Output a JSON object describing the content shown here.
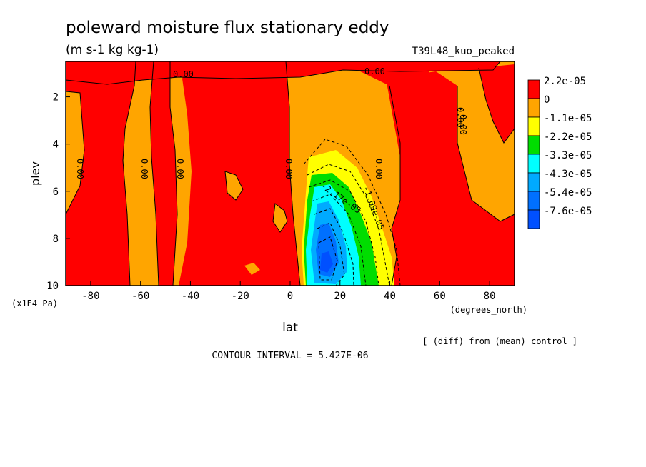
{
  "chart_data": {
    "type": "heatmap",
    "title": "poleward moisture flux stationary eddy",
    "units": "(m s-1 kg kg-1)",
    "run_name": "T39L48_kuo_peaked",
    "xlabel": "lat",
    "x_units": "(degrees_north)",
    "ylabel": "plev",
    "y_units": "(x1E4 Pa)",
    "x_range": [
      -90,
      90
    ],
    "y_range": [
      10,
      0.5
    ],
    "x_ticks": [
      "-80",
      "-60",
      "-40",
      "-20",
      "0",
      "20",
      "40",
      "60",
      "80"
    ],
    "y_ticks": [
      "2",
      "4",
      "6",
      "8",
      "10"
    ],
    "colorbar": {
      "labels": [
        "2.2e-05",
        "0",
        "-1.1e-05",
        "-2.2e-05",
        "-3.3e-05",
        "-4.3e-05",
        "-5.4e-05",
        "-7.6e-05"
      ],
      "colors": [
        "#ff0000",
        "#ffa500",
        "#ffff00",
        "#00dd00",
        "#00ffff",
        "#00aaff",
        "#0070ff",
        "#0050ff"
      ]
    },
    "contour_labels": [
      "0.00",
      "0.00",
      "0.00",
      "0.00",
      "0.00",
      "0.00",
      "0.00",
      "0.00",
      "0.00",
      "-2.17e-05",
      "-1.09e-05"
    ],
    "note": "[ (diff) from (mean) control ]",
    "contour_interval_label": "CONTOUR INTERVAL = 5.427E-06"
  }
}
